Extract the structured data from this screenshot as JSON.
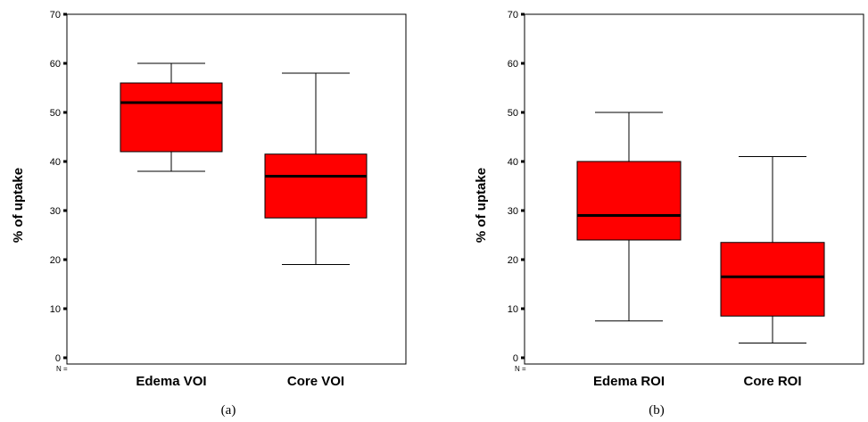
{
  "chart_data": [
    {
      "type": "box",
      "panel_label": "(a)",
      "ylabel": "% of uptake",
      "ylim": [
        0,
        70
      ],
      "yticks": [
        0,
        10,
        20,
        30,
        40,
        50,
        60,
        70
      ],
      "n_label": "N =",
      "categories": [
        "Edema VOI",
        "Core VOI"
      ],
      "boxes": [
        {
          "min": 38,
          "q1": 42,
          "median": 52,
          "q3": 56,
          "max": 60,
          "color": "#ff0000"
        },
        {
          "min": 19,
          "q1": 28.5,
          "median": 37,
          "q3": 41.5,
          "max": 58,
          "color": "#ff0000"
        }
      ],
      "grid": false
    },
    {
      "type": "box",
      "panel_label": "(b)",
      "ylabel": "% of uptake",
      "ylim": [
        0,
        70
      ],
      "yticks": [
        0,
        10,
        20,
        30,
        40,
        50,
        60,
        70
      ],
      "n_label": "N =",
      "categories": [
        "Edema ROI",
        "Core ROI"
      ],
      "boxes": [
        {
          "min": 7.5,
          "q1": 24,
          "median": 29,
          "q3": 40,
          "max": 50,
          "color": "#ff0000"
        },
        {
          "min": 3,
          "q1": 8.5,
          "median": 16.5,
          "q3": 23.5,
          "max": 41,
          "color": "#ff0000"
        }
      ],
      "grid": false
    }
  ]
}
